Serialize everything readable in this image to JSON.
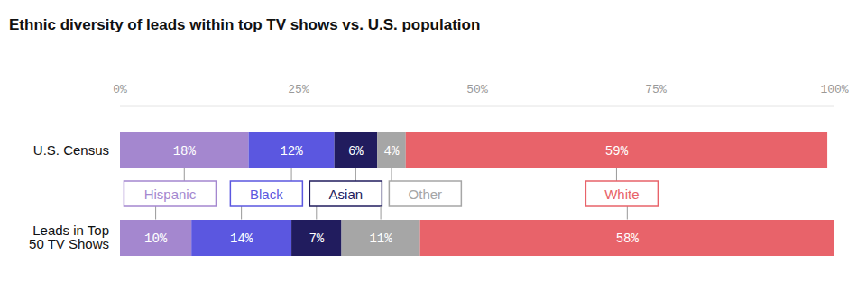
{
  "chart_data": {
    "type": "bar",
    "title": "Ethnic diversity of leads within top TV shows vs. U.S. population",
    "categories": [
      "U.S. Census",
      "Leads in Top 50 TV Shows"
    ],
    "series": [
      {
        "name": "Hispanic",
        "color": "#a487cf",
        "values": [
          18,
          10
        ],
        "value_labels": [
          "18%",
          "10%"
        ]
      },
      {
        "name": "Black",
        "color": "#5b57e0",
        "values": [
          12,
          14
        ],
        "value_labels": [
          "12%",
          "14%"
        ]
      },
      {
        "name": "Asian",
        "color": "#211c5e",
        "values": [
          6,
          7
        ],
        "value_labels": [
          "6%",
          "7%"
        ]
      },
      {
        "name": "Other",
        "color": "#a6a6a6",
        "values": [
          4,
          11
        ],
        "value_labels": [
          "4%",
          "11%"
        ]
      },
      {
        "name": "White",
        "color": "#e8636a",
        "values": [
          59,
          58
        ],
        "value_labels": [
          "59%",
          "58%"
        ]
      }
    ],
    "xlim": [
      0,
      100
    ],
    "xticks": [
      {
        "value": 0,
        "label": "0%"
      },
      {
        "value": 25,
        "label": "25%"
      },
      {
        "value": 50,
        "label": "50%"
      },
      {
        "value": 75,
        "label": "75%"
      },
      {
        "value": 100,
        "label": "100%"
      }
    ],
    "orientation": "horizontal",
    "stacked": true,
    "data_labels": true,
    "grid": false
  }
}
